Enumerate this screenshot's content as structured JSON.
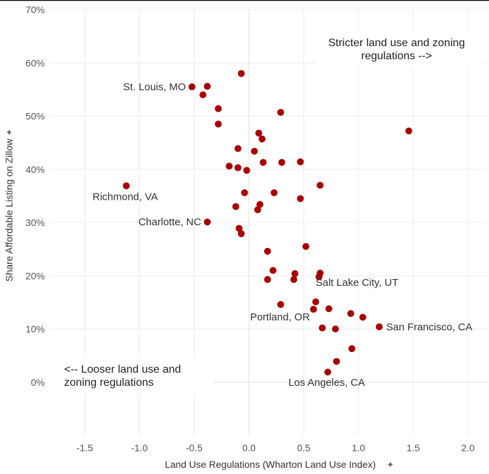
{
  "chart_data": {
    "type": "scatter",
    "xlabel": "Land Use Regulations (Wharton Land Use Index)",
    "ylabel": "Share Affordable Listing on Zillow",
    "xlim": [
      -1.82,
      2.18
    ],
    "ylim": [
      -10,
      70
    ],
    "x_ticks": [
      -1.5,
      -1.0,
      -0.5,
      0.0,
      0.5,
      1.0,
      1.5,
      2.0
    ],
    "x_tick_labels": [
      "-1.5",
      "-1.0",
      "-0.5",
      "0.0",
      "0.5",
      "1.0",
      "1.5",
      "2.0"
    ],
    "y_ticks": [
      0,
      10,
      20,
      30,
      40,
      50,
      60,
      70
    ],
    "y_tick_labels": [
      "0%",
      "10%",
      "20%",
      "30%",
      "40%",
      "50%",
      "60%",
      "70%"
    ],
    "zero_reference_lines": true,
    "marker_color": "#a80000",
    "points": [
      {
        "x": -0.07,
        "y": 58.0
      },
      {
        "x": -0.52,
        "y": 55.5,
        "label": "St. Louis, MO"
      },
      {
        "x": -0.38,
        "y": 55.6
      },
      {
        "x": -0.42,
        "y": 54.0
      },
      {
        "x": -0.28,
        "y": 51.4
      },
      {
        "x": 0.29,
        "y": 50.7
      },
      {
        "x": -0.28,
        "y": 48.5
      },
      {
        "x": 1.46,
        "y": 47.2
      },
      {
        "x": 0.09,
        "y": 46.8
      },
      {
        "x": 0.12,
        "y": 45.7
      },
      {
        "x": -0.1,
        "y": 43.9
      },
      {
        "x": 0.05,
        "y": 43.4
      },
      {
        "x": 0.13,
        "y": 41.3
      },
      {
        "x": 0.3,
        "y": 41.3
      },
      {
        "x": 0.47,
        "y": 41.4
      },
      {
        "x": -0.18,
        "y": 40.6
      },
      {
        "x": -0.1,
        "y": 40.3
      },
      {
        "x": -0.02,
        "y": 39.8
      },
      {
        "x": -1.12,
        "y": 36.9,
        "label": "Richmond, VA"
      },
      {
        "x": 0.65,
        "y": 37.0
      },
      {
        "x": -0.04,
        "y": 35.6
      },
      {
        "x": 0.23,
        "y": 35.6
      },
      {
        "x": 0.47,
        "y": 34.5
      },
      {
        "x": 0.1,
        "y": 33.4
      },
      {
        "x": -0.12,
        "y": 33.0
      },
      {
        "x": 0.08,
        "y": 32.4
      },
      {
        "x": -0.38,
        "y": 30.1,
        "label": "Charlotte, NC"
      },
      {
        "x": -0.09,
        "y": 28.9
      },
      {
        "x": -0.07,
        "y": 27.9
      },
      {
        "x": 0.52,
        "y": 25.5
      },
      {
        "x": 0.17,
        "y": 24.6
      },
      {
        "x": 0.22,
        "y": 21.0
      },
      {
        "x": 0.42,
        "y": 20.4
      },
      {
        "x": 0.65,
        "y": 20.5
      },
      {
        "x": 0.64,
        "y": 19.8
      },
      {
        "x": 0.17,
        "y": 19.3
      },
      {
        "x": 0.41,
        "y": 19.3
      },
      {
        "x": 0.61,
        "y": 15.1,
        "label": "Salt Lake City, UT"
      },
      {
        "x": 0.29,
        "y": 14.6
      },
      {
        "x": 0.73,
        "y": 13.8
      },
      {
        "x": 0.59,
        "y": 13.7,
        "label": "Portland, OR"
      },
      {
        "x": 0.93,
        "y": 12.9
      },
      {
        "x": 1.04,
        "y": 12.2
      },
      {
        "x": 1.19,
        "y": 10.4,
        "label": "San Francisco, CA"
      },
      {
        "x": 0.67,
        "y": 10.2
      },
      {
        "x": 0.79,
        "y": 10.0
      },
      {
        "x": 0.94,
        "y": 6.3
      },
      {
        "x": 0.8,
        "y": 3.9
      },
      {
        "x": 0.72,
        "y": 1.9,
        "label": "Los Angeles, CA"
      }
    ],
    "annotations": [
      {
        "lines": [
          "Stricter land use and zoning",
          "regulations -->"
        ]
      },
      {
        "lines": [
          "<-- Looser land use and",
          "zoning regulations"
        ]
      }
    ]
  }
}
